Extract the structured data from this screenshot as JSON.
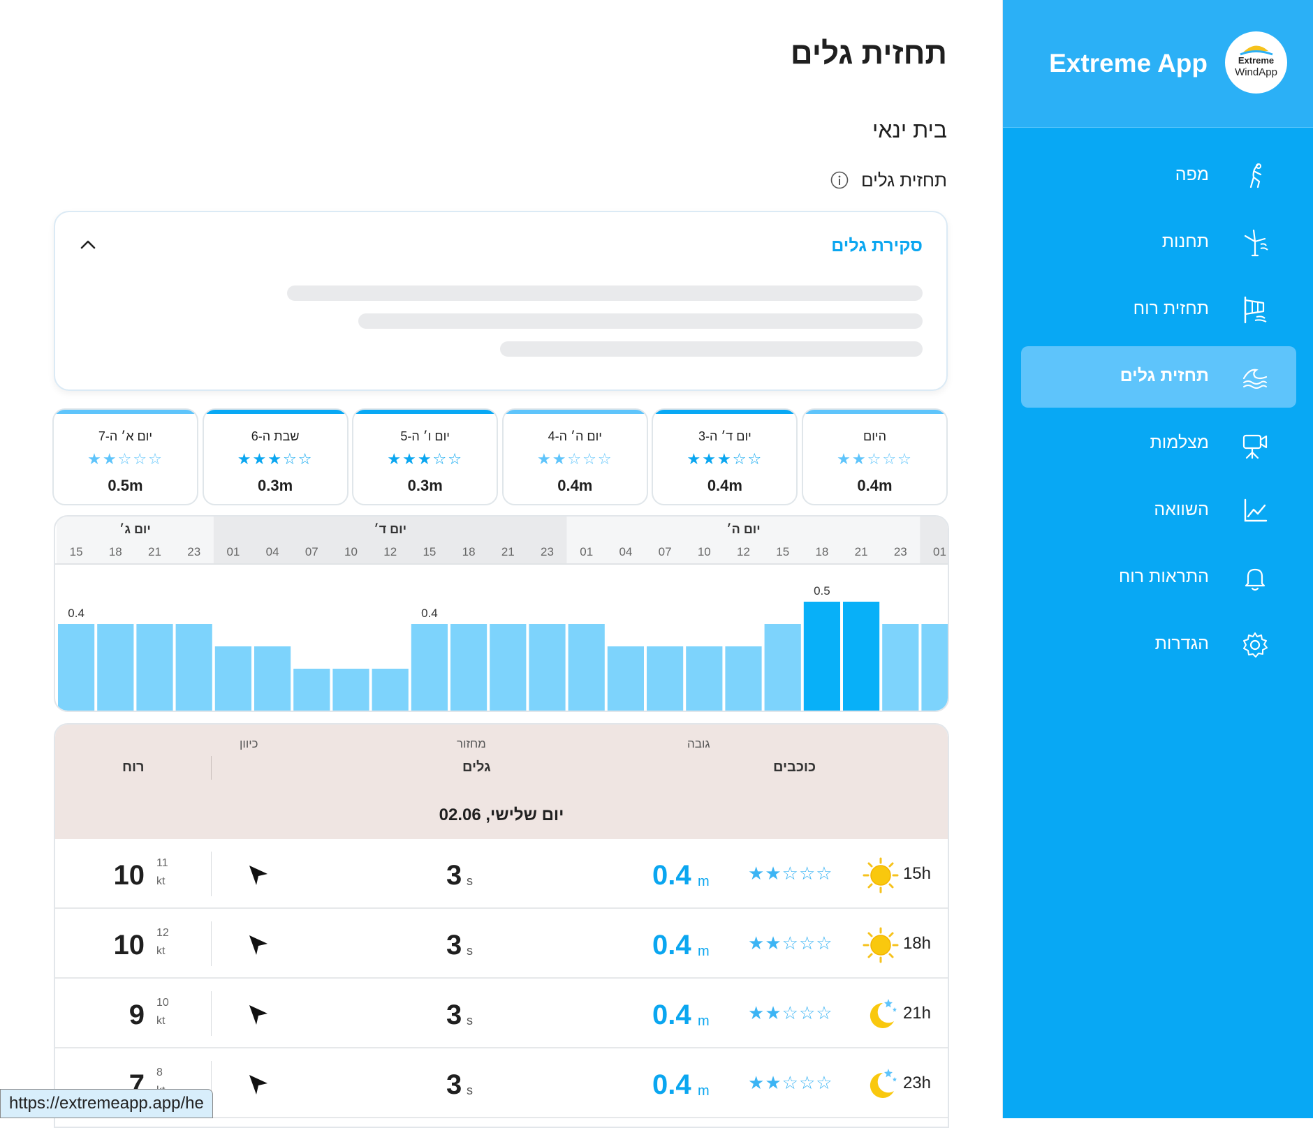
{
  "app": {
    "title": "Extreme App",
    "logo_line1": "Extreme",
    "logo_line2": "WindApp"
  },
  "sidebar": {
    "items": [
      {
        "label": "מפה",
        "icon": "kitesurfer-icon",
        "active": false
      },
      {
        "label": "תחנות",
        "icon": "windmill-icon",
        "active": false
      },
      {
        "label": "תחזית רוח",
        "icon": "windsock-icon",
        "active": false
      },
      {
        "label": "תחזית גלים",
        "icon": "wave-icon",
        "active": true
      },
      {
        "label": "מצלמות",
        "icon": "camera-icon",
        "active": false
      },
      {
        "label": "השוואה",
        "icon": "chart-icon",
        "active": false
      },
      {
        "label": "התראות רוח",
        "icon": "bell-icon",
        "active": false
      },
      {
        "label": "הגדרות",
        "icon": "gear-icon",
        "active": false
      }
    ]
  },
  "page": {
    "title": "תחזית גלים",
    "spot": "בית ינאי",
    "subtitle": "תחזית גלים"
  },
  "overview": {
    "title": "סקירת גלים"
  },
  "days": [
    {
      "name": "היום",
      "stars": 2,
      "value": "0.4m",
      "accent": "#5ec4fb"
    },
    {
      "name": "יום ד׳ ה-3",
      "stars": 3,
      "value": "0.4m",
      "accent": "#08a8f4"
    },
    {
      "name": "יום ה׳ ה-4",
      "stars": 2,
      "value": "0.4m",
      "accent": "#5ec4fb"
    },
    {
      "name": "יום ו׳ ה-5",
      "stars": 3,
      "value": "0.3m",
      "accent": "#08a8f4"
    },
    {
      "name": "שבת ה-6",
      "stars": 3,
      "value": "0.3m",
      "accent": "#08a8f4"
    },
    {
      "name": "יום א׳ ה-7",
      "stars": 2,
      "value": "0.5m",
      "accent": "#5ec4fb"
    }
  ],
  "chart_data": {
    "type": "bar",
    "day_groups": [
      {
        "label": "יום ג׳",
        "hours": [
          "15",
          "18",
          "21",
          "23"
        ]
      },
      {
        "label": "יום ד׳",
        "hours": [
          "01",
          "04",
          "07",
          "10",
          "12",
          "15",
          "18",
          "21",
          "23"
        ]
      },
      {
        "label": "יום ה׳",
        "hours": [
          "01",
          "04",
          "07",
          "10",
          "12",
          "15",
          "18",
          "21",
          "23"
        ]
      },
      {
        "label": "",
        "hours": [
          "01"
        ]
      }
    ],
    "values": [
      0.4,
      0.4,
      0.4,
      0.4,
      0.3,
      0.3,
      0.2,
      0.2,
      0.2,
      0.4,
      0.4,
      0.4,
      0.4,
      0.4,
      0.3,
      0.3,
      0.3,
      0.3,
      0.4,
      0.5,
      0.5,
      0.4,
      0.4
    ],
    "data_labels": [
      "0.4",
      "",
      "",
      "",
      "",
      "",
      "",
      "",
      "",
      "0.4",
      "",
      "",
      "",
      "",
      "",
      "",
      "",
      "",
      "",
      "0.5",
      "",
      "",
      ""
    ],
    "highlight": [
      false,
      false,
      false,
      false,
      false,
      false,
      false,
      false,
      false,
      false,
      false,
      false,
      false,
      false,
      false,
      false,
      false,
      false,
      false,
      true,
      true,
      false,
      false
    ],
    "ylim": [
      0,
      0.6
    ],
    "colors": {
      "bar": "#7dd3fc",
      "highlight": "#08b0f8"
    }
  },
  "table": {
    "col_direction": "כיוון",
    "col_period": "מחזור",
    "col_height": "גובה",
    "group_wind": "רוח",
    "group_waves": "גלים",
    "group_stars": "כוכבים",
    "date": "יום שלישי, 02.06",
    "rows": [
      {
        "hour": "15h",
        "icon": "sun-icon",
        "stars": 2,
        "height": "0.4",
        "height_unit": "m",
        "period": "3",
        "period_unit": "s",
        "wind": "10",
        "gust": "11",
        "wind_unit": "kt"
      },
      {
        "hour": "18h",
        "icon": "sun-icon",
        "stars": 2,
        "height": "0.4",
        "height_unit": "m",
        "period": "3",
        "period_unit": "s",
        "wind": "10",
        "gust": "12",
        "wind_unit": "kt"
      },
      {
        "hour": "21h",
        "icon": "moon-icon",
        "stars": 2,
        "height": "0.4",
        "height_unit": "m",
        "period": "3",
        "period_unit": "s",
        "wind": "9",
        "gust": "10",
        "wind_unit": "kt"
      },
      {
        "hour": "23h",
        "icon": "moon-icon",
        "stars": 2,
        "height": "0.4",
        "height_unit": "m",
        "period": "3",
        "period_unit": "s",
        "wind": "7",
        "gust": "8",
        "wind_unit": "kt"
      }
    ]
  },
  "status_url": "https://extremeapp.app/he"
}
